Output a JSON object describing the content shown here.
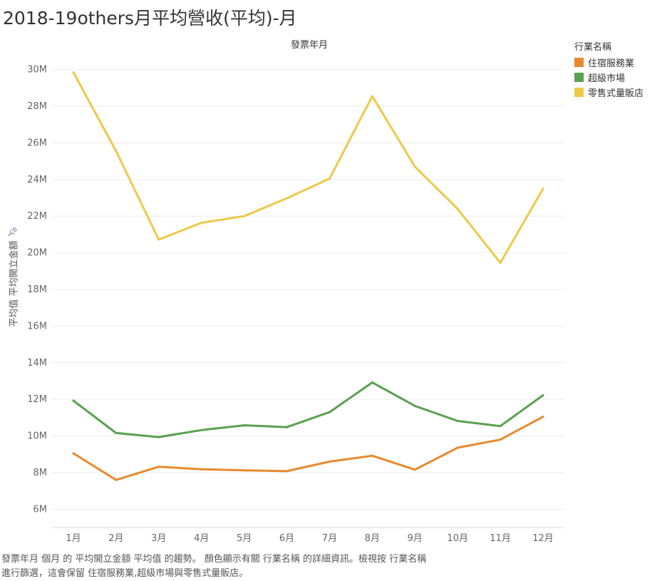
{
  "title": "2018-19others月平均營收(平均)-月",
  "chart_data": {
    "type": "line",
    "title": "2018-19others月平均營收(平均)-月",
    "xlabel": "發票年月",
    "ylabel": "平均值 平均開立金額",
    "categories": [
      "1月",
      "2月",
      "3月",
      "4月",
      "5月",
      "6月",
      "7月",
      "8月",
      "9月",
      "10月",
      "11月",
      "12月"
    ],
    "ylim": [
      5000000,
      31000000
    ],
    "yticks": [
      6000000,
      8000000,
      10000000,
      12000000,
      14000000,
      16000000,
      18000000,
      20000000,
      22000000,
      24000000,
      26000000,
      28000000,
      30000000
    ],
    "ytick_labels": [
      "6M",
      "8M",
      "10M",
      "12M",
      "14M",
      "16M",
      "18M",
      "20M",
      "22M",
      "24M",
      "26M",
      "28M",
      "30M"
    ],
    "grid": true,
    "legend_title": "行業名稱",
    "legend_position": "right",
    "series": [
      {
        "name": "住宿服務業",
        "color": "#e8892e",
        "values": [
          9050000,
          7600000,
          8320000,
          8180000,
          8120000,
          8080000,
          8600000,
          8920000,
          8160000,
          9360000,
          9800000,
          11050000
        ]
      },
      {
        "name": "超級市場",
        "color": "#59a14f",
        "values": [
          11930000,
          10160000,
          9940000,
          10320000,
          10580000,
          10480000,
          11300000,
          12920000,
          11640000,
          10820000,
          10540000,
          12220000
        ]
      },
      {
        "name": "零售式量販店",
        "color": "#edc948",
        "values": [
          29850000,
          25550000,
          20720000,
          21640000,
          22000000,
          22980000,
          24050000,
          28550000,
          24700000,
          22400000,
          19450000,
          23500000
        ]
      }
    ]
  },
  "caption": {
    "line1": "發票年月 個月 的 平均開立金額 平均值 的趨勢。 顏色顯示有關 行業名稱 的詳細資訊。檢視按 行業名稱",
    "line2": "進行篩選，這會保留 住宿服務業,超級市場與零售式量販店。"
  }
}
